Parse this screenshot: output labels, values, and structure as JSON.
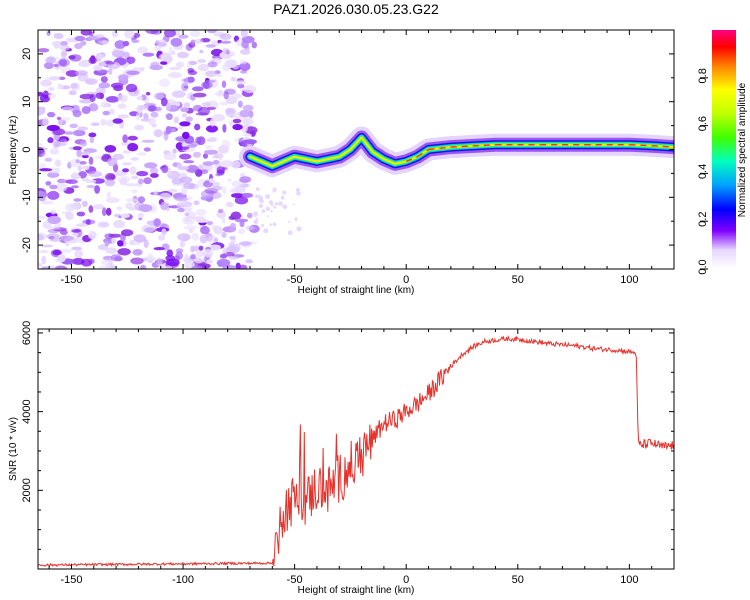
{
  "title": "PAZ1.2026.030.05.23.G22",
  "colors": {
    "trace": "#e8312b",
    "noise": "#8a2be2",
    "frame": "#000000"
  },
  "chart_data": [
    {
      "type": "heatmap",
      "name": "spectrogram",
      "xlabel": "Height of straight line (km)",
      "ylabel": "Frequency (Hz)",
      "xlim": [
        -165,
        120
      ],
      "ylim": [
        -25,
        25
      ],
      "xticks": [
        -150,
        -100,
        -50,
        0,
        50,
        100
      ],
      "yticks": [
        -20,
        -10,
        0,
        10,
        20
      ],
      "ridge": {
        "x": [
          -70,
          -65,
          -60,
          -55,
          -50,
          -45,
          -40,
          -35,
          -30,
          -25,
          -20,
          -15,
          -10,
          -5,
          0,
          5,
          10,
          20,
          40,
          60,
          80,
          100,
          110,
          120
        ],
        "y": [
          -1.5,
          -2.5,
          -3.5,
          -2.5,
          -1.5,
          -2.0,
          -2.5,
          -2.0,
          -1.5,
          0.0,
          2.5,
          -0.5,
          -2.0,
          -3.0,
          -2.5,
          -1.5,
          0.0,
          0.5,
          1.0,
          1.0,
          1.0,
          1.0,
          0.8,
          0.5
        ],
        "peak_amplitude": 1.0
      },
      "noise_region_x": [
        -165,
        -68
      ],
      "colorbar": {
        "label": "Normalized spectral amplitude",
        "range": [
          0,
          1
        ],
        "ticks": [
          0.0,
          0.2,
          0.4,
          0.6,
          0.8
        ]
      }
    },
    {
      "type": "line",
      "name": "snr",
      "xlabel": "Height of straight line (km)",
      "ylabel": "SNR (10 * v/v)",
      "xlim": [
        -165,
        120
      ],
      "ylim": [
        0,
        6100
      ],
      "xticks": [
        -150,
        -100,
        -50,
        0,
        50,
        100
      ],
      "yticks": [
        2000,
        4000,
        6000
      ],
      "series": [
        {
          "name": "SNR",
          "x": [
            -165,
            -60,
            -58,
            -55,
            -50,
            -45,
            -40,
            -35,
            -30,
            -25,
            -20,
            -15,
            -10,
            -5,
            0,
            5,
            10,
            15,
            20,
            25,
            30,
            35,
            40,
            45,
            50,
            55,
            60,
            65,
            70,
            75,
            80,
            85,
            90,
            95,
            100,
            103,
            104,
            105,
            110,
            115,
            120
          ],
          "y": [
            100,
            150,
            600,
            1500,
            1800,
            1700,
            2100,
            2000,
            2300,
            2600,
            2900,
            3300,
            3700,
            3800,
            4000,
            4200,
            4450,
            4800,
            5150,
            5450,
            5650,
            5780,
            5820,
            5850,
            5840,
            5800,
            5760,
            5720,
            5700,
            5680,
            5640,
            5600,
            5580,
            5560,
            5520,
            5500,
            3200,
            3150,
            3200,
            3100,
            3150
          ]
        }
      ]
    }
  ]
}
